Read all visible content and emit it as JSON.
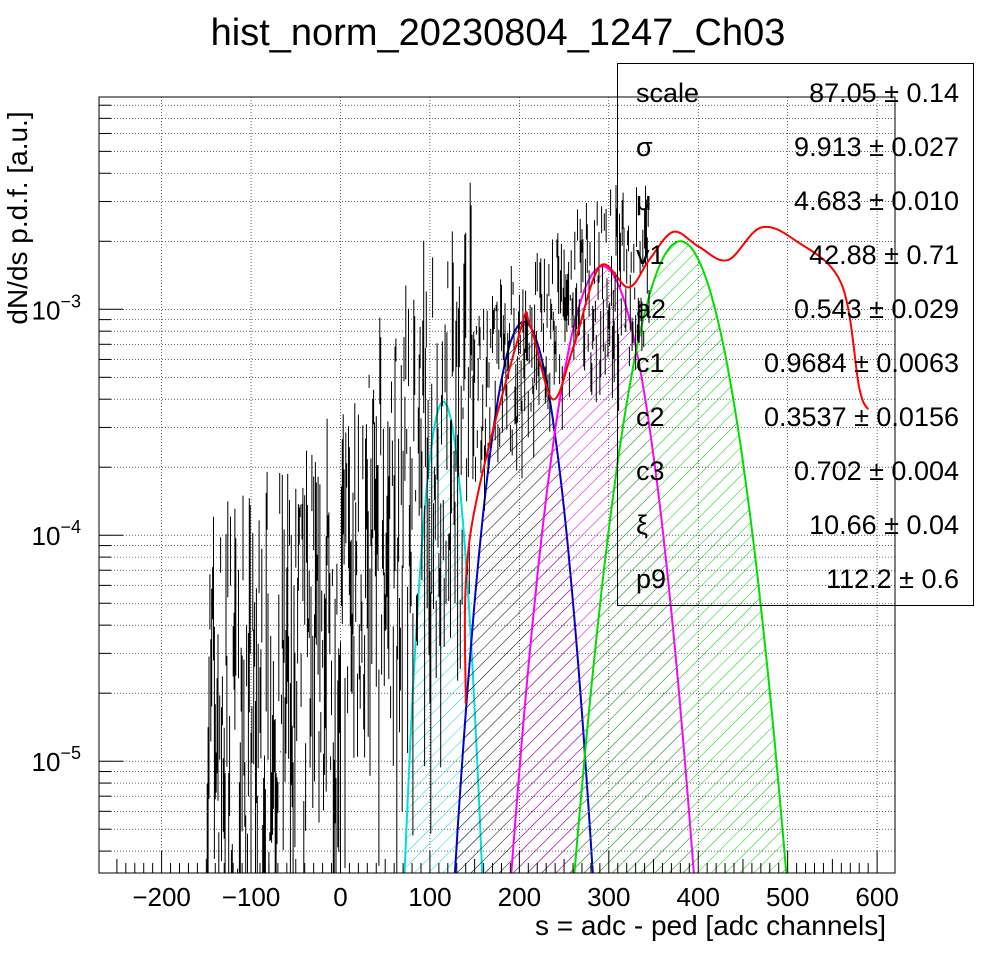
{
  "chart_data": {
    "type": "line",
    "title": "hist_norm_20230804_1247_Ch03",
    "xlabel": "s = adc - ped [adc channels]",
    "ylabel": "dN/ds p.d.f. [a.u.]",
    "x_range": [
      -270,
      620
    ],
    "y_range": [
      3.2e-06,
      0.0087
    ],
    "y_scale": "log",
    "x_ticks": [
      -200,
      -100,
      0,
      100,
      200,
      300,
      400,
      500,
      600
    ],
    "y_tick_labels": [
      "10^-5",
      "10^-4",
      "10^-3"
    ],
    "grid": true,
    "fit_params": [
      {
        "name": "scale",
        "value": "87.05 ± 0.14"
      },
      {
        "name": "σ",
        "value": "9.913 ± 0.027"
      },
      {
        "name": "μ",
        "value": "4.683 ± 0.010"
      },
      {
        "name": "v1",
        "value": "42.88 ± 0.71"
      },
      {
        "name": "a2",
        "value": "0.543 ± 0.029"
      },
      {
        "name": "c1",
        "value": "0.9684 ± 0.0063"
      },
      {
        "name": "c2",
        "value": "0.3537 ± 0.0156"
      },
      {
        "name": "c3",
        "value": "0.702 ± 0.004"
      },
      {
        "name": "ξ",
        "value": "10.66 ± 0.04"
      },
      {
        "name": "p9",
        "value": "112.2 ± 0.6"
      }
    ],
    "series": [
      {
        "type": "histogram",
        "color": "#000000",
        "x_start": -150,
        "x_end": 345,
        "trend": [
          [
            -150,
            1.5e-05
          ],
          [
            -100,
            1.8e-05
          ],
          [
            -50,
            2.4e-05
          ],
          [
            0,
            4.5e-05
          ],
          [
            50,
            0.0001
          ],
          [
            100,
            0.0002
          ],
          [
            150,
            0.00038
          ],
          [
            200,
            0.00062
          ],
          [
            250,
            0.0009
          ],
          [
            300,
            0.00125
          ],
          [
            345,
            0.0014
          ]
        ]
      },
      {
        "type": "fit",
        "color": "#ff0000",
        "points": [
          [
            140,
            1.8e-05
          ],
          [
            145,
            0.0001
          ],
          [
            200,
            0.00078
          ],
          [
            212,
            0.00085
          ],
          [
            237,
            0.0004
          ],
          [
            260,
            0.00067
          ],
          [
            290,
            0.00155
          ],
          [
            322,
            0.00125
          ],
          [
            345,
            0.00165
          ],
          [
            372,
            0.0022
          ],
          [
            400,
            0.0019
          ],
          [
            433,
            0.00165
          ],
          [
            470,
            0.0023
          ],
          [
            510,
            0.002
          ],
          [
            560,
            0.0013
          ],
          [
            580,
            0.00045
          ],
          [
            590,
            0.00036
          ]
        ]
      },
      {
        "type": "peak",
        "color": "#00dddd",
        "mu": 115,
        "sigma": 14,
        "amp": 0.00039
      },
      {
        "type": "peak",
        "color": "#0000cc",
        "mu": 205,
        "sigma": 23,
        "amp": 0.00088
      },
      {
        "type": "peak",
        "color": "#ff00ff",
        "mu": 293,
        "sigma": 29,
        "amp": 0.00155
      },
      {
        "type": "peak",
        "color": "#00dd00",
        "mu": 380,
        "sigma": 33,
        "amp": 0.002
      }
    ]
  }
}
